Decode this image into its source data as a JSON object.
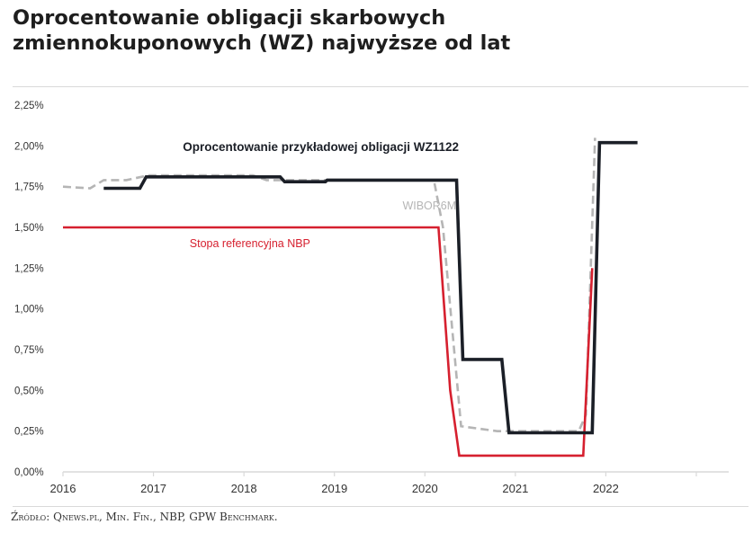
{
  "title_lines": [
    "Oprocentowanie obligacji skarbowych",
    "zmiennokuponowych (WZ) najwyższe od lat"
  ],
  "source": "Źródło: Qnews.pl, Min. Fin., NBP, GPW Benchmark.",
  "colors": {
    "wz1122": "#1b1f27",
    "wibor": "#b5b5b5",
    "nbp": "#d6202f",
    "grid": "#d9d9d9",
    "axis": "#555555"
  },
  "chart_data": {
    "type": "line",
    "title": "",
    "xlabel": "",
    "ylabel": "",
    "xlim": [
      2016,
      2023
    ],
    "ylim": [
      0,
      2.25
    ],
    "grid": false,
    "x_ticks": [
      "2016",
      "2017",
      "2018",
      "2019",
      "2020",
      "2021",
      "2022"
    ],
    "y_ticks": [
      "0,00%",
      "0,25%",
      "0,50%",
      "0,75%",
      "1,00%",
      "1,25%",
      "1,50%",
      "1,75%",
      "2,00%",
      "2,25%"
    ],
    "series": [
      {
        "name": "Oprocentowanie przykładowej obligacji WZ1122",
        "style": "solid",
        "color": "#1b1f27",
        "points": [
          [
            2016.45,
            1.74
          ],
          [
            2016.85,
            1.74
          ],
          [
            2016.92,
            1.81
          ],
          [
            2018.4,
            1.81
          ],
          [
            2018.45,
            1.78
          ],
          [
            2018.9,
            1.78
          ],
          [
            2018.92,
            1.79
          ],
          [
            2020.35,
            1.79
          ],
          [
            2020.42,
            0.69
          ],
          [
            2020.85,
            0.69
          ],
          [
            2020.93,
            0.24
          ],
          [
            2021.85,
            0.24
          ],
          [
            2021.93,
            2.02
          ],
          [
            2022.35,
            2.02
          ]
        ]
      },
      {
        "name": "WIBOR6M",
        "style": "dashed",
        "color": "#b5b5b5",
        "points": [
          [
            2016.0,
            1.75
          ],
          [
            2016.3,
            1.74
          ],
          [
            2016.45,
            1.79
          ],
          [
            2016.7,
            1.79
          ],
          [
            2016.95,
            1.82
          ],
          [
            2018.1,
            1.82
          ],
          [
            2018.25,
            1.79
          ],
          [
            2019.95,
            1.79
          ],
          [
            2020.1,
            1.79
          ],
          [
            2020.2,
            1.5
          ],
          [
            2020.4,
            0.28
          ],
          [
            2020.8,
            0.25
          ],
          [
            2021.7,
            0.25
          ],
          [
            2021.78,
            0.35
          ],
          [
            2021.88,
            2.05
          ]
        ]
      },
      {
        "name": "Stopa referencyjna NBP",
        "style": "solid",
        "color": "#d6202f",
        "points": [
          [
            2016.0,
            1.5
          ],
          [
            2020.15,
            1.5
          ],
          [
            2020.28,
            0.5
          ],
          [
            2020.38,
            0.1
          ],
          [
            2021.75,
            0.1
          ],
          [
            2021.85,
            1.25
          ]
        ]
      }
    ],
    "annotations": [
      {
        "text": "Oprocentowanie przykładowej obligacji WZ1122",
        "series": 0,
        "at_x": 2018.85,
        "at_y": 1.97,
        "color": "#1b1f27",
        "weight": "bold"
      },
      {
        "text": "WIBOR6M",
        "series": 1,
        "at_x": 2020.05,
        "at_y": 1.61,
        "color": "#b5b5b5",
        "weight": "normal"
      },
      {
        "text": "Stopa referencyjna NBP",
        "series": 2,
        "at_x": 2017.4,
        "at_y": 1.38,
        "color": "#d6202f",
        "weight": "normal"
      }
    ]
  }
}
